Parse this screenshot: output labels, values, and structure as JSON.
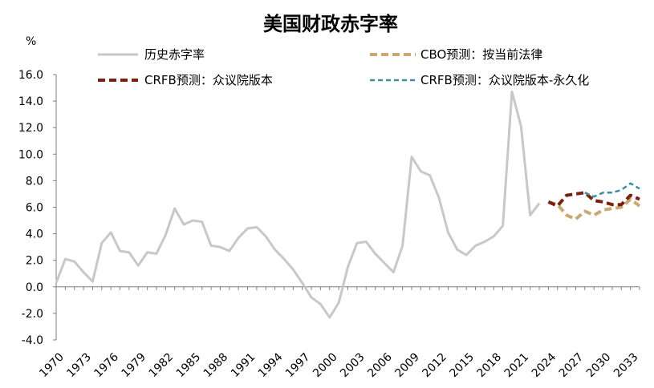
{
  "chart_data": {
    "type": "line",
    "title": "美国财政赤字率",
    "unit": "%",
    "xlabel": "",
    "ylabel": "",
    "ylim": [
      -4.0,
      16.0
    ],
    "xlim": [
      1970,
      2034
    ],
    "y_ticks": [
      "16.0",
      "14.0",
      "12.0",
      "10.0",
      "8.0",
      "6.0",
      "4.0",
      "2.0",
      "0.0",
      "-2.0",
      "-4.0"
    ],
    "x_ticks": [
      "1970",
      "1973",
      "1976",
      "1979",
      "1982",
      "1985",
      "1988",
      "1991",
      "1994",
      "1997",
      "2000",
      "2003",
      "2006",
      "2009",
      "2012",
      "2015",
      "2018",
      "2021",
      "2024",
      "2027",
      "2030",
      "2033"
    ],
    "legend_position": "top",
    "series": [
      {
        "name": "历史赤字率",
        "color": "#c8c8c8",
        "style": "solid",
        "x": [
          1970,
          1971,
          1972,
          1973,
          1974,
          1975,
          1976,
          1977,
          1978,
          1979,
          1980,
          1981,
          1982,
          1983,
          1984,
          1985,
          1986,
          1987,
          1988,
          1989,
          1990,
          1991,
          1992,
          1993,
          1994,
          1995,
          1996,
          1997,
          1998,
          1999,
          2000,
          2001,
          2002,
          2003,
          2004,
          2005,
          2006,
          2007,
          2008,
          2009,
          2010,
          2011,
          2012,
          2013,
          2014,
          2015,
          2016,
          2017,
          2018,
          2019,
          2020,
          2021,
          2022,
          2023
        ],
        "y": [
          0.3,
          2.1,
          1.9,
          1.1,
          0.4,
          3.3,
          4.1,
          2.7,
          2.6,
          1.6,
          2.6,
          2.5,
          3.9,
          5.9,
          4.7,
          5.0,
          4.9,
          3.1,
          3.0,
          2.7,
          3.7,
          4.4,
          4.5,
          3.8,
          2.8,
          2.1,
          1.3,
          0.3,
          -0.8,
          -1.3,
          -2.3,
          -1.2,
          1.5,
          3.3,
          3.4,
          2.5,
          1.8,
          1.1,
          3.1,
          9.8,
          8.7,
          8.4,
          6.7,
          4.1,
          2.8,
          2.4,
          3.1,
          3.4,
          3.8,
          4.6,
          14.7,
          12.1,
          5.4,
          6.3
        ]
      },
      {
        "name": "CBO预测：按当前法律",
        "color": "#c8a96e",
        "style": "dashed",
        "x": [
          2024,
          2025,
          2026,
          2027,
          2028,
          2029,
          2030,
          2031,
          2032,
          2033,
          2034
        ],
        "y": [
          6.4,
          6.2,
          5.4,
          5.1,
          5.7,
          5.4,
          5.8,
          5.9,
          6.0,
          6.6,
          6.1
        ]
      },
      {
        "name": "CRFB预测：众议院版本",
        "color": "#7b1f0e",
        "style": "dashed",
        "x": [
          2024,
          2025,
          2026,
          2027,
          2028,
          2029,
          2030,
          2031,
          2032,
          2033,
          2034
        ],
        "y": [
          6.4,
          6.1,
          6.9,
          7.0,
          7.1,
          6.5,
          6.4,
          6.2,
          6.2,
          6.9,
          6.6
        ]
      },
      {
        "name": "CRFB预测：众议院版本-永久化",
        "color": "#3c8ea0",
        "style": "dashed",
        "x": [
          2028,
          2029,
          2030,
          2031,
          2032,
          2033,
          2034
        ],
        "y": [
          7.1,
          6.8,
          7.1,
          7.1,
          7.3,
          7.8,
          7.4
        ]
      }
    ]
  }
}
